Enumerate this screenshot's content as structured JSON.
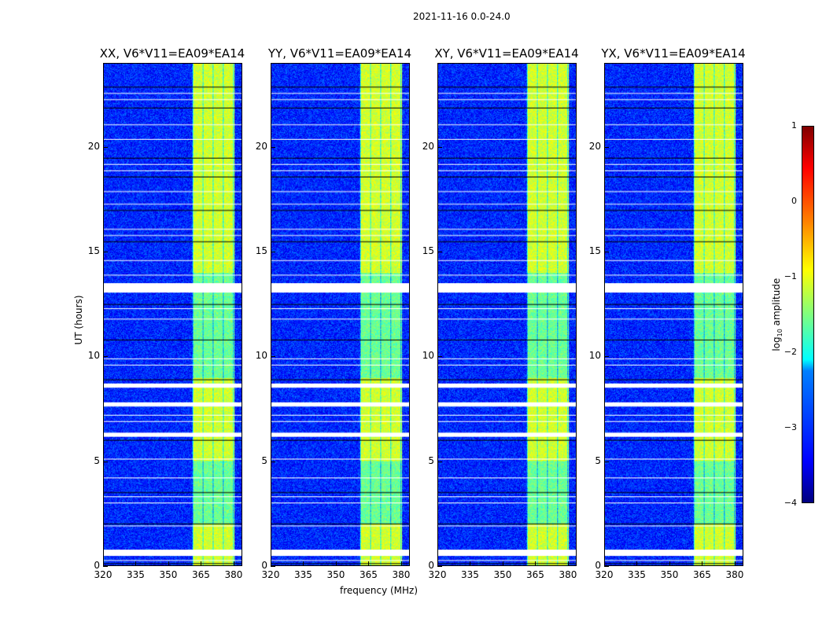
{
  "suptitle": "2021-11-16 0.0-24.0",
  "chart_data": {
    "type": "heatmap",
    "panels": [
      {
        "title": "XX, V6*V11=EA09*EA14"
      },
      {
        "title": "YY, V6*V11=EA09*EA14"
      },
      {
        "title": "XY, V6*V11=EA09*EA14"
      },
      {
        "title": "YX, V6*V11=EA09*EA14"
      }
    ],
    "xlabel": "frequency (MHz)",
    "ylabel": "UT (hours)",
    "xlim": [
      320,
      384
    ],
    "ylim": [
      0,
      24
    ],
    "xticks": [
      "320",
      "335",
      "350",
      "365",
      "380"
    ],
    "xtick_values": [
      320,
      335,
      350,
      365,
      380
    ],
    "yticks": [
      "0",
      "5",
      "10",
      "15",
      "20"
    ],
    "ytick_values": [
      0,
      5,
      10,
      15,
      20
    ],
    "background_level": -3.2,
    "band_mhz": [
      361,
      380.5
    ],
    "band_level": -1.6,
    "flagged_hours": [
      [
        0.45,
        0.75
      ],
      [
        6.15,
        6.35
      ],
      [
        7.6,
        7.8
      ],
      [
        8.5,
        8.7
      ],
      [
        13.05,
        13.5
      ]
    ],
    "flag_lines_hours": [
      0.1,
      0.25,
      1.9,
      2.0,
      3.0,
      3.3,
      3.5,
      4.2,
      5.1,
      6.0,
      6.9,
      7.2,
      8.9,
      9.6,
      9.9,
      10.8,
      11.8,
      12.3,
      12.5,
      13.9,
      14.6,
      15.5,
      15.8,
      16.1,
      17.0,
      17.3,
      17.9,
      18.6,
      18.9,
      19.2,
      19.5,
      20.4,
      21.1,
      21.9,
      22.3,
      22.6,
      22.9
    ],
    "colorbar": {
      "label": "log10 amplitude",
      "ticks": [
        "1",
        "0",
        "−1",
        "−2",
        "−3",
        "−4"
      ],
      "tick_values": [
        1,
        0,
        -1,
        -2,
        -3,
        -4
      ],
      "range": [
        -4,
        1
      ]
    }
  }
}
